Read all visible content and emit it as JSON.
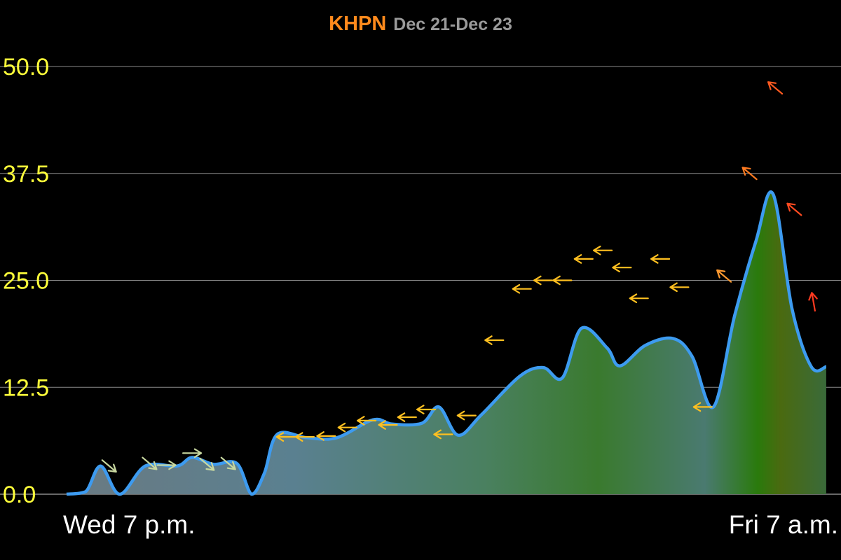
{
  "header": {
    "station": "KHPN",
    "date_range": "Dec 21-Dec 23"
  },
  "colors": {
    "line": "#3d9bf0",
    "grid": "#8a8a8a",
    "ytick": "#ffff3a",
    "xtick": "#ffffff",
    "station": "#ff8a1c",
    "date_range": "#9a9a9a"
  },
  "chart_data": {
    "type": "area",
    "title": "KHPN",
    "subtitle": "Dec 21-Dec 23",
    "ylim": [
      0,
      50
    ],
    "yticks": [
      "0.0",
      "12.5",
      "25.0",
      "37.5",
      "50.0"
    ],
    "grid": true,
    "x_tick_labels": [
      "Wed 7 p.m.",
      "Fri 7 a.m."
    ],
    "x_range": [
      0,
      36
    ],
    "series": [
      {
        "values": [
          [
            0.0,
            0.0
          ],
          [
            0.9,
            0.3
          ],
          [
            1.6,
            3.3
          ],
          [
            2.5,
            0.0
          ],
          [
            3.7,
            3.3
          ],
          [
            5.2,
            3.3
          ],
          [
            5.9,
            4.3
          ],
          [
            6.9,
            3.5
          ],
          [
            8.0,
            3.6
          ],
          [
            8.7,
            0.0
          ],
          [
            9.3,
            2.5
          ],
          [
            9.9,
            7.0
          ],
          [
            11.3,
            6.6
          ],
          [
            12.7,
            6.6
          ],
          [
            14.4,
            8.7
          ],
          [
            15.3,
            8.2
          ],
          [
            16.7,
            8.3
          ],
          [
            17.5,
            10.2
          ],
          [
            18.4,
            6.9
          ],
          [
            19.5,
            9.3
          ],
          [
            21.3,
            13.8
          ],
          [
            22.4,
            14.8
          ],
          [
            23.3,
            13.6
          ],
          [
            24.2,
            19.4
          ],
          [
            25.4,
            17.1
          ],
          [
            26.0,
            15.0
          ],
          [
            27.2,
            17.4
          ],
          [
            28.5,
            18.2
          ],
          [
            29.4,
            16.1
          ],
          [
            30.4,
            10.2
          ],
          [
            31.4,
            20.9
          ],
          [
            32.4,
            29.6
          ],
          [
            33.2,
            35.1
          ],
          [
            34.1,
            21.6
          ],
          [
            35.0,
            14.9
          ],
          [
            35.7,
            14.9
          ]
        ]
      }
    ],
    "wind_direction_arrows": [
      {
        "x": 2.0,
        "y": 3.3,
        "dir": "down-right",
        "color": "#c8d8a0"
      },
      {
        "x": 3.9,
        "y": 3.6,
        "dir": "down-right",
        "color": "#c8d8a0"
      },
      {
        "x": 4.7,
        "y": 3.4,
        "dir": "right",
        "color": "#c8d8a0"
      },
      {
        "x": 5.9,
        "y": 4.8,
        "dir": "right",
        "color": "#c8d8a0"
      },
      {
        "x": 6.6,
        "y": 3.5,
        "dir": "down-right",
        "color": "#c8d8a0"
      },
      {
        "x": 7.6,
        "y": 3.6,
        "dir": "down-right",
        "color": "#c8d8a0"
      },
      {
        "x": 10.3,
        "y": 6.7,
        "dir": "left",
        "color": "#ffc020"
      },
      {
        "x": 11.2,
        "y": 6.7,
        "dir": "left",
        "color": "#ffc020"
      },
      {
        "x": 12.2,
        "y": 6.8,
        "dir": "left",
        "color": "#ffc020"
      },
      {
        "x": 13.2,
        "y": 7.8,
        "dir": "left",
        "color": "#ffc020"
      },
      {
        "x": 14.1,
        "y": 8.6,
        "dir": "left",
        "color": "#ffc020"
      },
      {
        "x": 15.1,
        "y": 8.1,
        "dir": "left",
        "color": "#ffc020"
      },
      {
        "x": 16.0,
        "y": 9.0,
        "dir": "left",
        "color": "#ffc020"
      },
      {
        "x": 16.9,
        "y": 9.9,
        "dir": "left",
        "color": "#ffc020"
      },
      {
        "x": 17.7,
        "y": 7.0,
        "dir": "left",
        "color": "#ffc020"
      },
      {
        "x": 18.8,
        "y": 9.2,
        "dir": "left",
        "color": "#ffc020"
      },
      {
        "x": 20.1,
        "y": 18.0,
        "dir": "left",
        "color": "#ffc020"
      },
      {
        "x": 21.4,
        "y": 24.0,
        "dir": "left",
        "color": "#ffc020"
      },
      {
        "x": 22.4,
        "y": 25.0,
        "dir": "left",
        "color": "#ffc020"
      },
      {
        "x": 23.3,
        "y": 25.0,
        "dir": "left",
        "color": "#ffc020"
      },
      {
        "x": 24.3,
        "y": 27.5,
        "dir": "left",
        "color": "#ffc020"
      },
      {
        "x": 25.2,
        "y": 28.5,
        "dir": "left",
        "color": "#ffc020"
      },
      {
        "x": 26.1,
        "y": 26.5,
        "dir": "left",
        "color": "#ffc020"
      },
      {
        "x": 26.9,
        "y": 22.9,
        "dir": "left",
        "color": "#ffc020"
      },
      {
        "x": 27.9,
        "y": 27.5,
        "dir": "left",
        "color": "#ffc020"
      },
      {
        "x": 28.8,
        "y": 24.2,
        "dir": "left",
        "color": "#ffc020"
      },
      {
        "x": 29.9,
        "y": 10.2,
        "dir": "left",
        "color": "#ffc020"
      },
      {
        "x": 30.9,
        "y": 25.5,
        "dir": "up-left",
        "color": "#ff9a30"
      },
      {
        "x": 32.1,
        "y": 37.5,
        "dir": "up-left",
        "color": "#ff7a20"
      },
      {
        "x": 33.3,
        "y": 47.5,
        "dir": "up-left",
        "color": "#ff5a20"
      },
      {
        "x": 34.2,
        "y": 33.3,
        "dir": "up-left",
        "color": "#ff4a20"
      },
      {
        "x": 35.1,
        "y": 22.5,
        "dir": "up",
        "color": "#ff3a20"
      }
    ]
  }
}
